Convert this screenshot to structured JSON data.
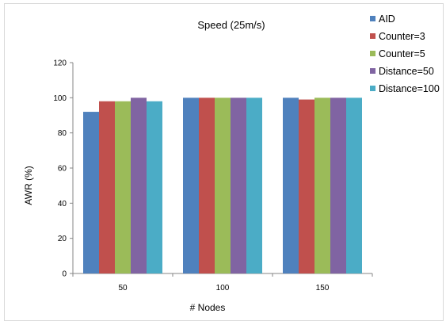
{
  "chart_data": {
    "type": "bar",
    "title": "Speed (25m/s)",
    "xlabel": "# Nodes",
    "ylabel": "AWR (%)",
    "categories": [
      "50",
      "100",
      "150"
    ],
    "ylim": [
      0,
      120
    ],
    "yticks": [
      0,
      20,
      40,
      60,
      80,
      100,
      120
    ],
    "grid": false,
    "legend_position": "top-right",
    "series": [
      {
        "name": "AID",
        "color": "#4f81bd",
        "values": [
          92,
          100,
          100
        ]
      },
      {
        "name": "Counter=3",
        "color": "#c0504d",
        "values": [
          98,
          100,
          99
        ]
      },
      {
        "name": "Counter=5",
        "color": "#9bbb59",
        "values": [
          98,
          100,
          100
        ]
      },
      {
        "name": "Distance=50",
        "color": "#8064a2",
        "values": [
          100,
          100,
          100
        ]
      },
      {
        "name": "Distance=100",
        "color": "#4bacc6",
        "values": [
          98,
          100,
          100
        ]
      }
    ]
  }
}
